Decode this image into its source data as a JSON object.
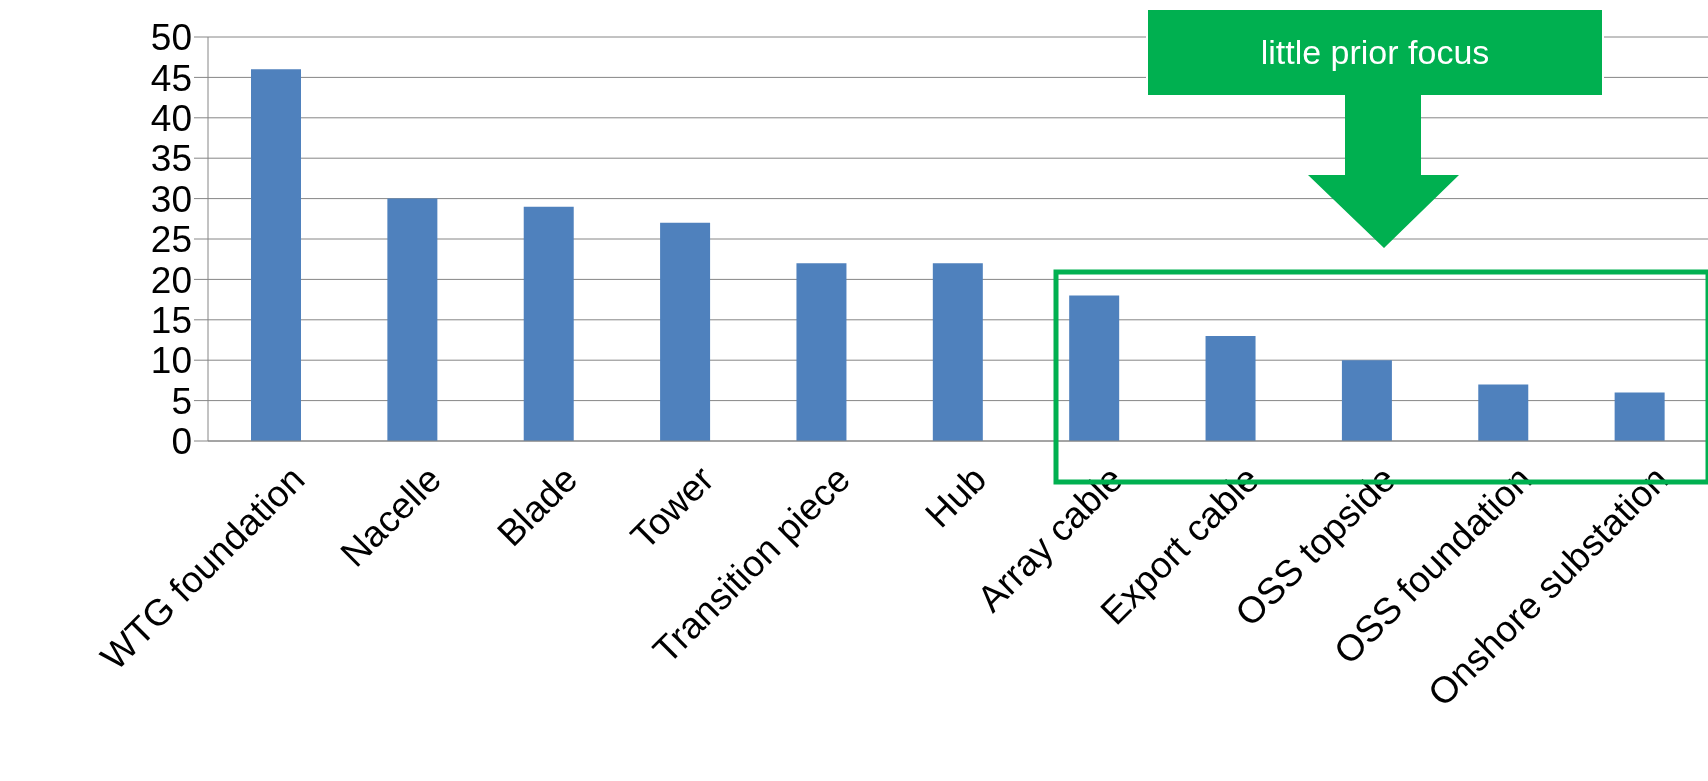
{
  "chart_data": {
    "type": "bar",
    "categories": [
      "WTG foundation",
      "Nacelle",
      "Blade",
      "Tower",
      "Transition piece",
      "Hub",
      "Array cable",
      "Export cable",
      "OSS topside",
      "OSS foundation",
      "Onshore substation"
    ],
    "values": [
      46,
      30,
      29,
      27,
      22,
      22,
      18,
      13,
      10,
      7,
      6
    ],
    "color": "#4f81bd",
    "ylim": [
      0,
      50
    ],
    "yticks": [
      0,
      5,
      10,
      15,
      20,
      25,
      30,
      35,
      40,
      45,
      50
    ],
    "grid": "y",
    "annotations": [
      "little prior focus"
    ]
  }
}
